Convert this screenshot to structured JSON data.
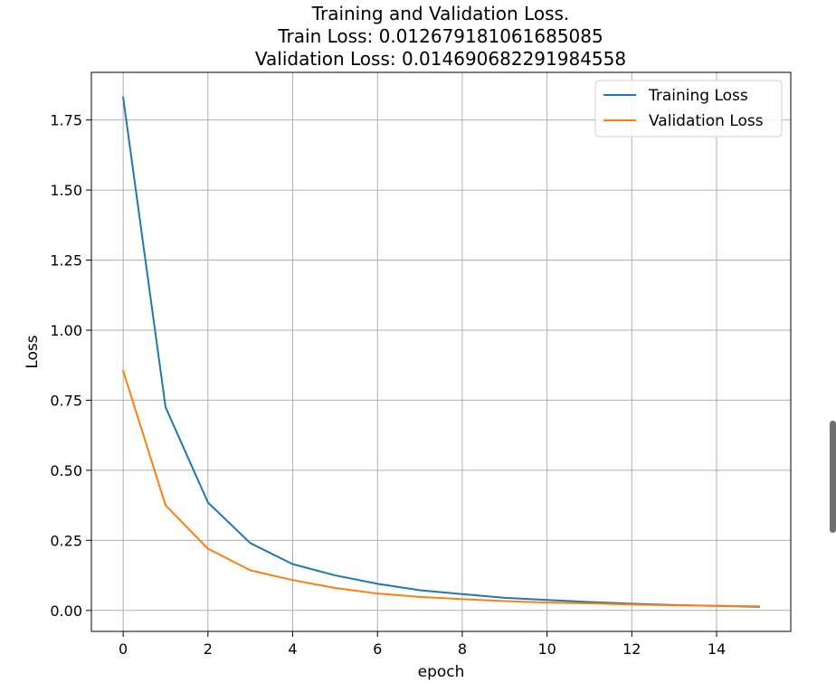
{
  "chart_data": {
    "type": "line",
    "title": [
      "Training and Validation Loss.",
      "Train Loss: 0.012679181061685085",
      "Validation Loss: 0.014690682291984558"
    ],
    "xlabel": "epoch",
    "ylabel": "Loss",
    "xlim": [
      -0.75,
      15.75
    ],
    "ylim": [
      -0.075,
      1.92
    ],
    "xticks": [
      0,
      2,
      4,
      6,
      8,
      10,
      12,
      14
    ],
    "xtick_labels": [
      "0",
      "2",
      "4",
      "6",
      "8",
      "10",
      "12",
      "14"
    ],
    "yticks": [
      0.0,
      0.25,
      0.5,
      0.75,
      1.0,
      1.25,
      1.5,
      1.75
    ],
    "ytick_labels": [
      "0.00",
      "0.25",
      "0.50",
      "0.75",
      "1.00",
      "1.25",
      "1.50",
      "1.75"
    ],
    "grid": true,
    "legend_position": "upper right",
    "x": [
      0,
      1,
      2,
      3,
      4,
      5,
      6,
      7,
      8,
      9,
      10,
      11,
      12,
      13,
      14,
      15
    ],
    "series": [
      {
        "name": "Training Loss",
        "color": "#1f77b4",
        "values": [
          1.83,
          0.725,
          0.385,
          0.24,
          0.165,
          0.125,
          0.095,
          0.072,
          0.058,
          0.045,
          0.037,
          0.03,
          0.024,
          0.019,
          0.016,
          0.0127
        ]
      },
      {
        "name": "Validation Loss",
        "color": "#ff7f0e",
        "values": [
          0.855,
          0.375,
          0.22,
          0.143,
          0.108,
          0.08,
          0.06,
          0.048,
          0.04,
          0.033,
          0.028,
          0.025,
          0.021,
          0.018,
          0.016,
          0.0147
        ]
      }
    ]
  },
  "scrollbar": {
    "name": "page-scrollbar"
  }
}
